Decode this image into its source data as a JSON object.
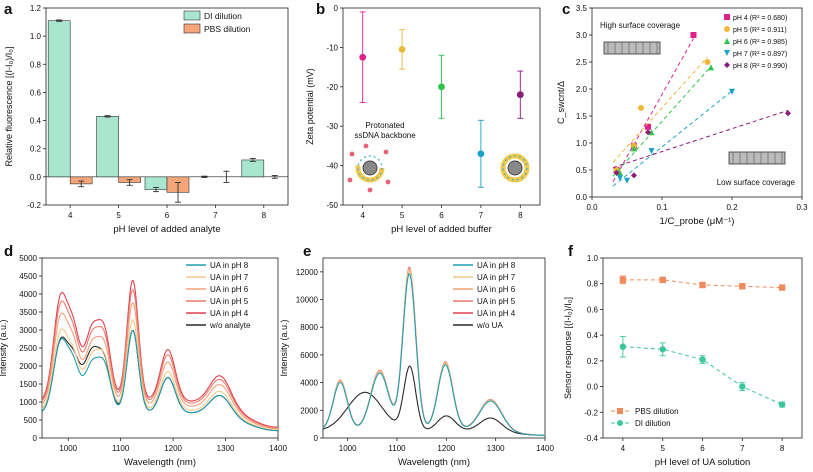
{
  "panels": [
    {
      "letter": "a",
      "chart_data": {
        "type": "bar",
        "categories": [
          "4",
          "5",
          "6",
          "7",
          "8"
        ],
        "series": [
          {
            "name": "DI dilution",
            "color": "#a8e6cf",
            "values": [
              1.11,
              0.43,
              -0.09,
              0.0,
              0.12
            ],
            "errors": [
              0.005,
              0.005,
              0.015,
              0.005,
              0.01
            ]
          },
          {
            "name": "PBS dilution",
            "color": "#f4a67a",
            "values": [
              -0.05,
              -0.04,
              -0.11,
              0.0,
              0.0
            ],
            "errors": [
              0.02,
              0.02,
              0.07,
              0.04,
              0.01
            ]
          }
        ],
        "xlabel": "pH level of added analyte",
        "ylabel": "Relative fluorescence [(I-I₀)/I₀]",
        "ylim": [
          -0.2,
          1.2
        ],
        "yticks": [
          "-0.2",
          "0.0",
          "0.2",
          "0.4",
          "0.6",
          "0.8",
          "1.0",
          "1.2"
        ],
        "legend": "top-right"
      }
    },
    {
      "letter": "b",
      "chart_data": {
        "type": "scatter",
        "points": [
          {
            "x": "4",
            "y": -12.5,
            "err": 11.5,
            "color": "#e0218a"
          },
          {
            "x": "5",
            "y": -10.5,
            "err": 5,
            "color": "#e8b83a"
          },
          {
            "x": "6",
            "y": -20,
            "err": 8,
            "color": "#2ec44a"
          },
          {
            "x": "7",
            "y": -37,
            "err": 8.5,
            "color": "#1aa3c8"
          },
          {
            "x": "8",
            "y": -22,
            "err": 6,
            "color": "#8e1a7a"
          }
        ],
        "categories": [
          "4",
          "5",
          "6",
          "7",
          "8"
        ],
        "xlabel": "pH level of added buffer",
        "ylabel": "Zeta potential (mV)",
        "ylim": [
          -50,
          0
        ],
        "yticks": [
          "-50",
          "-40",
          "-30",
          "-20",
          "-10",
          "0"
        ],
        "annotation": [
          "Protonated",
          "ssDNA backbone"
        ]
      }
    },
    {
      "letter": "c",
      "chart_data": {
        "type": "scatter",
        "xlabel": "1/C_probe (μM⁻¹)",
        "ylabel": "C_swcnt/Δ",
        "xlim": [
          0,
          0.3
        ],
        "ylim": [
          0,
          3.5
        ],
        "xticks": [
          "0.0",
          "0.1",
          "0.2",
          "0.3"
        ],
        "yticks": [
          "0.0",
          "0.5",
          "1.0",
          "1.5",
          "2.0",
          "2.5",
          "3.0",
          "3.5"
        ],
        "series": [
          {
            "name": "pH 4",
            "r2": "0.680",
            "marker": "square",
            "color": "#e0218a",
            "points": [
              [
                0.035,
                0.5
              ],
              [
                0.06,
                0.95
              ],
              [
                0.08,
                1.3
              ],
              [
                0.145,
                3.0
              ]
            ]
          },
          {
            "name": "pH 5",
            "r2": "0.911",
            "marker": "circle",
            "color": "#f0b83a",
            "points": [
              [
                0.035,
                0.5
              ],
              [
                0.06,
                0.95
              ],
              [
                0.07,
                1.65
              ],
              [
                0.165,
                2.5
              ]
            ]
          },
          {
            "name": "pH 6",
            "r2": "0.985",
            "marker": "triangle-up",
            "color": "#2ec44a",
            "points": [
              [
                0.04,
                0.45
              ],
              [
                0.06,
                0.9
              ],
              [
                0.085,
                1.2
              ],
              [
                0.17,
                2.4
              ]
            ]
          },
          {
            "name": "pH 7",
            "r2": "0.897",
            "marker": "triangle-down",
            "color": "#1aa3c8",
            "points": [
              [
                0.04,
                0.35
              ],
              [
                0.05,
                0.3
              ],
              [
                0.085,
                0.85
              ],
              [
                0.2,
                1.95
              ]
            ]
          },
          {
            "name": "pH 8",
            "r2": "0.990",
            "marker": "diamond",
            "color": "#8e1a7a",
            "points": [
              [
                0.035,
                0.45
              ],
              [
                0.06,
                0.4
              ],
              [
                0.08,
                1.2
              ],
              [
                0.28,
                1.55
              ]
            ]
          }
        ],
        "annotations": [
          "High surface coverage",
          "Low surface coverage"
        ],
        "legend": "top-right"
      }
    },
    {
      "letter": "d",
      "chart_data": {
        "type": "line",
        "xlabel": "Wavelength (nm)",
        "ylabel": "Intensity (a.u.)",
        "xlim": [
          950,
          1400
        ],
        "ylim": [
          0,
          5000
        ],
        "xticks": [
          "1000",
          "1100",
          "1200",
          "1300",
          "1400"
        ],
        "yticks": [
          "0",
          "500",
          "1000",
          "1500",
          "2000",
          "2500",
          "3000",
          "3500",
          "4000",
          "4500",
          "5000"
        ],
        "series": [
          {
            "name": "UA in pH 8",
            "color": "#1f9db0",
            "scale": 0.82
          },
          {
            "name": "UA in pH 7",
            "color": "#f3c98b",
            "scale": 0.9
          },
          {
            "name": "UA in pH 6",
            "color": "#f2a07a",
            "scale": 1.03
          },
          {
            "name": "UA in pH 5",
            "color": "#ec7a6a",
            "scale": 1.13
          },
          {
            "name": "UA in pH 4",
            "color": "#e0414f",
            "scale": 1.2
          },
          {
            "name": "w/o analyte",
            "color": "#2a2a2a",
            "scale": 1.0
          }
        ],
        "legend": "top-right"
      }
    },
    {
      "letter": "e",
      "chart_data": {
        "type": "line",
        "xlabel": "Wavelength (nm)",
        "ylabel": "Intensity (a.u.)",
        "xlim": [
          950,
          1400
        ],
        "ylim": [
          0,
          13000
        ],
        "xticks": [
          "1000",
          "1100",
          "1200",
          "1300",
          "1400"
        ],
        "yticks": [
          "0",
          "2000",
          "4000",
          "6000",
          "8000",
          "10000",
          "12000"
        ],
        "series": [
          {
            "name": "UA in pH 8",
            "color": "#1f9db0",
            "scale": 0.98
          },
          {
            "name": "UA in pH 7",
            "color": "#f3c98b",
            "scale": 1.0
          },
          {
            "name": "UA in pH 6",
            "color": "#f2a07a",
            "scale": 1.01
          },
          {
            "name": "UA in pH 5",
            "color": "#ec7a6a",
            "scale": 1.02
          },
          {
            "name": "UA in pH 4",
            "color": "#e0414f",
            "scale": 1.0
          },
          {
            "name": "w/o UA",
            "color": "#2a2a2a",
            "scale": 1.0
          }
        ],
        "legend": "top-right"
      }
    },
    {
      "letter": "f",
      "chart_data": {
        "type": "line",
        "categories": [
          "4",
          "5",
          "6",
          "7",
          "8"
        ],
        "series": [
          {
            "name": "PBS dilution",
            "color": "#f08a5d",
            "marker": "square",
            "values": [
              0.83,
              0.83,
              0.79,
              0.78,
              0.77
            ],
            "errors": [
              0.03,
              0.01,
              0.02,
              0.01,
              0.01
            ]
          },
          {
            "name": "DI dilution",
            "color": "#3cc79a",
            "marker": "circle",
            "values": [
              0.31,
              0.29,
              0.21,
              0.0,
              -0.14
            ],
            "errors": [
              0.08,
              0.05,
              0.03,
              0.03,
              0.02
            ]
          }
        ],
        "xlabel": "pH level of UA solution",
        "ylabel": "Sensor response [(I-I₀)/I₀]",
        "ylim": [
          -0.4,
          1.0
        ],
        "yticks": [
          "-0.4",
          "-0.2",
          "0.0",
          "0.2",
          "0.4",
          "0.6",
          "0.8",
          "1.0"
        ],
        "legend": "bottom-left"
      }
    }
  ]
}
